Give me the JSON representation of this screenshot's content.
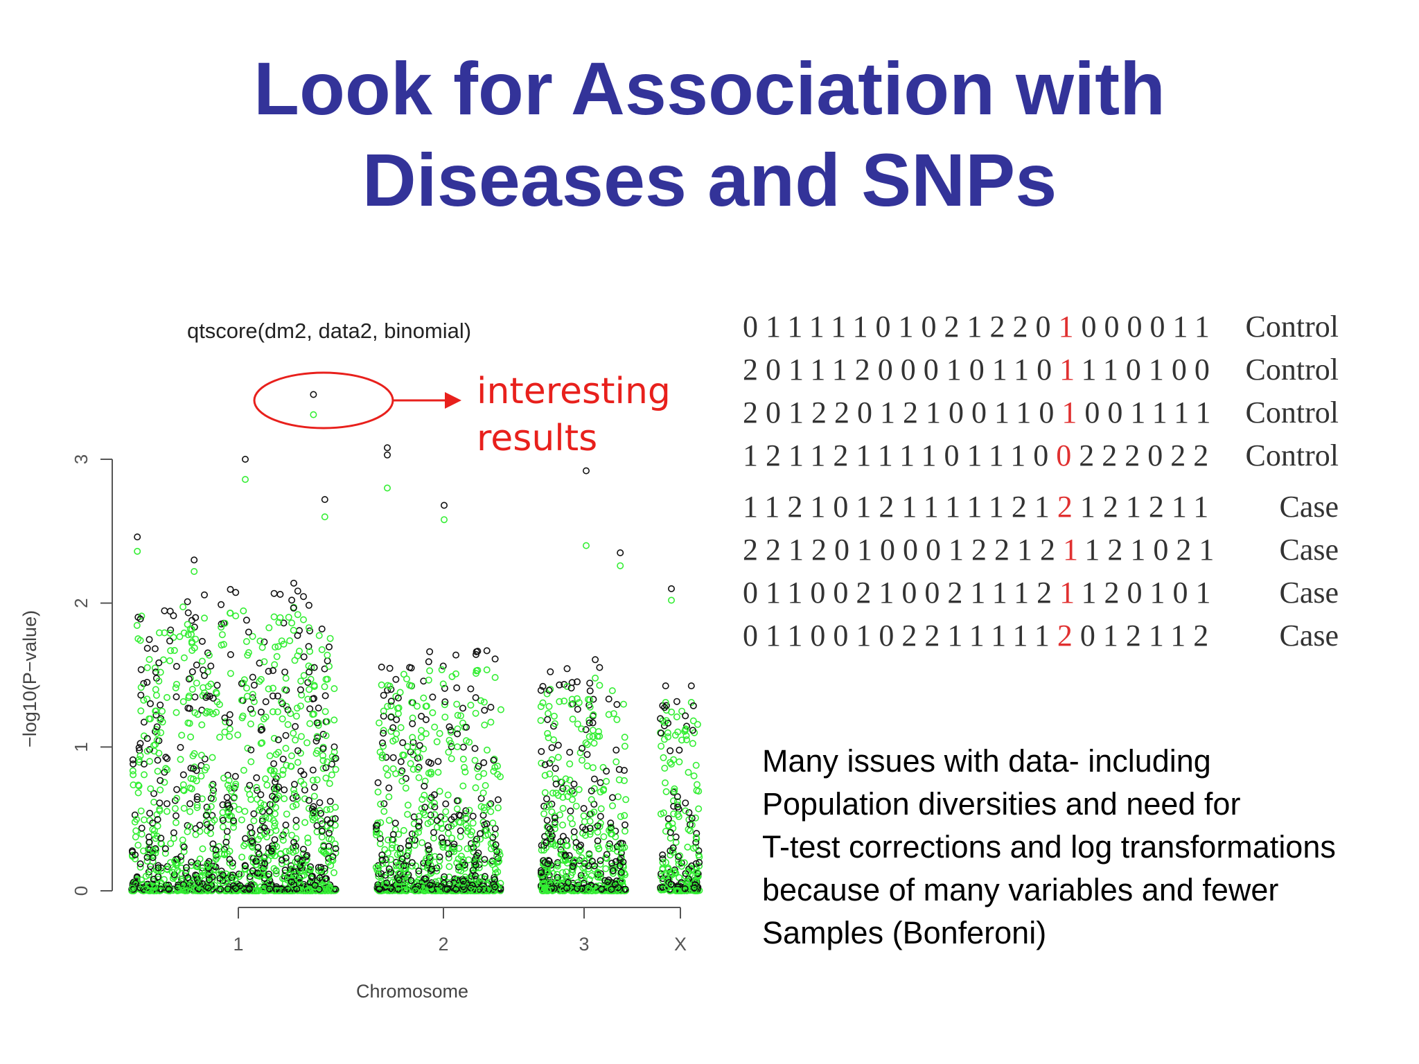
{
  "slide": {
    "title_lines": [
      "Look for Association with",
      "Diseases and SNPs"
    ]
  },
  "annotation": {
    "text_lines": [
      "interesting",
      "results"
    ],
    "color": "#e8201c"
  },
  "snp_table": {
    "highlight_index": 14,
    "highlight_color": "#e03030",
    "rows": [
      {
        "seq": "011111010212201000011",
        "label": "Control"
      },
      {
        "seq": "201112000101101110100",
        "label": "Control"
      },
      {
        "seq": "201220121001101001111",
        "label": "Control"
      },
      {
        "seq": "121121111011100222022",
        "label": "Control"
      },
      {
        "seq": "112101211111212121211",
        "label": "Case"
      },
      {
        "seq": "221201000122121121021",
        "label": "Case"
      },
      {
        "seq": "011002100211121120101",
        "label": "Case"
      },
      {
        "seq": "011001022111112012112",
        "label": "Case"
      }
    ]
  },
  "notes": {
    "lines": [
      "Many issues with data- including",
      "Population diversities and need for",
      "T-test corrections and log transformations",
      "because of many variables and fewer",
      "Samples (Bonferoni)"
    ]
  },
  "chart_data": {
    "type": "scatter",
    "title": "qtscore(dm2, data2, binomial)",
    "xlabel": "Chromosome",
    "ylabel": "−log10(P−value)",
    "ylim": [
      0,
      3
    ],
    "yticks": [
      "0",
      "1",
      "2",
      "3"
    ],
    "xticks": [
      "1",
      "2",
      "3",
      "X"
    ],
    "colors": {
      "observed": "#111111",
      "corrected": "#33ee33"
    },
    "chromosomes": [
      {
        "name": "1",
        "start": 0.0,
        "end": 0.36
      },
      {
        "name": "2",
        "start": 0.43,
        "end": 0.65
      },
      {
        "name": "3",
        "start": 0.72,
        "end": 0.87
      },
      {
        "name": "X",
        "start": 0.93,
        "end": 1.0
      }
    ],
    "top_points": [
      {
        "x": 0.32,
        "y": 3.45,
        "series": "observed"
      },
      {
        "x": 0.32,
        "y": 3.31,
        "series": "corrected"
      },
      {
        "x": 0.45,
        "y": 3.08,
        "series": "observed"
      },
      {
        "x": 0.45,
        "y": 3.03,
        "series": "observed"
      },
      {
        "x": 0.2,
        "y": 3.0,
        "series": "observed"
      },
      {
        "x": 0.8,
        "y": 2.92,
        "series": "observed"
      },
      {
        "x": 0.45,
        "y": 2.8,
        "series": "corrected"
      },
      {
        "x": 0.2,
        "y": 2.86,
        "series": "corrected"
      },
      {
        "x": 0.34,
        "y": 2.72,
        "series": "observed"
      },
      {
        "x": 0.55,
        "y": 2.68,
        "series": "observed"
      },
      {
        "x": 0.34,
        "y": 2.6,
        "series": "corrected"
      },
      {
        "x": 0.55,
        "y": 2.58,
        "series": "corrected"
      },
      {
        "x": 0.01,
        "y": 2.46,
        "series": "observed"
      },
      {
        "x": 0.01,
        "y": 2.36,
        "series": "corrected"
      },
      {
        "x": 0.8,
        "y": 2.4,
        "series": "corrected"
      },
      {
        "x": 0.86,
        "y": 2.35,
        "series": "observed"
      },
      {
        "x": 0.86,
        "y": 2.26,
        "series": "corrected"
      },
      {
        "x": 0.11,
        "y": 2.3,
        "series": "observed"
      },
      {
        "x": 0.11,
        "y": 2.22,
        "series": "corrected"
      },
      {
        "x": 0.95,
        "y": 2.1,
        "series": "observed"
      },
      {
        "x": 0.95,
        "y": 2.02,
        "series": "corrected"
      }
    ]
  }
}
